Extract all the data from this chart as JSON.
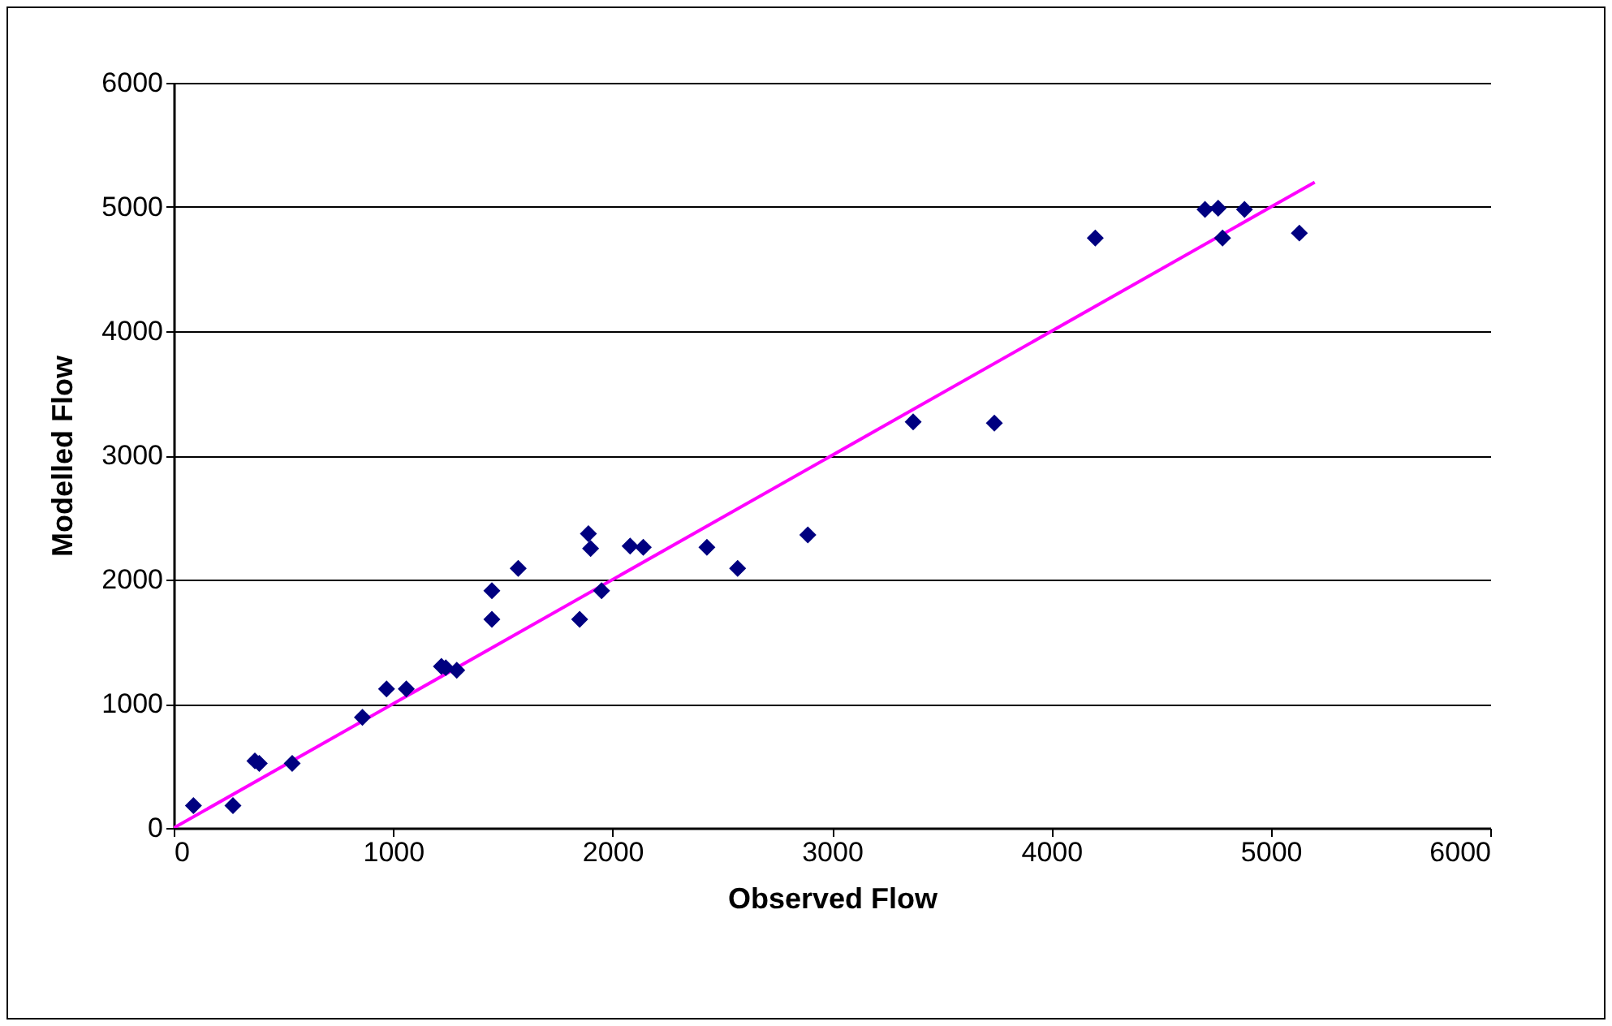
{
  "chart_data": {
    "type": "scatter",
    "xlabel": "Observed Flow",
    "ylabel": "Modelled Flow",
    "xlim": [
      0,
      6000
    ],
    "ylim": [
      0,
      6000
    ],
    "xticks": [
      0,
      1000,
      2000,
      3000,
      4000,
      5000,
      6000
    ],
    "yticks": [
      0,
      1000,
      2000,
      3000,
      4000,
      5000,
      6000
    ],
    "grid": "y",
    "series": [
      {
        "color": "#000080",
        "marker": "diamond",
        "x": [
          90,
          270,
          370,
          390,
          540,
          860,
          970,
          1060,
          1220,
          1240,
          1290,
          1450,
          1450,
          1570,
          1850,
          1890,
          1900,
          1950,
          2080,
          2140,
          2430,
          2570,
          2890,
          3370,
          3740,
          4200,
          4700,
          4760,
          4780,
          4880,
          5130
        ],
        "values": [
          180,
          180,
          540,
          520,
          520,
          890,
          1120,
          1120,
          1300,
          1290,
          1270,
          1680,
          1910,
          2090,
          1680,
          2370,
          2250,
          1910,
          2270,
          2260,
          2260,
          2090,
          2360,
          3270,
          3260,
          4750,
          4980,
          4990,
          4750,
          4980,
          4790
        ]
      },
      {
        "type": "line",
        "color": "#ff00ff",
        "x": [
          0,
          5200
        ],
        "values": [
          0,
          5200
        ]
      }
    ]
  }
}
